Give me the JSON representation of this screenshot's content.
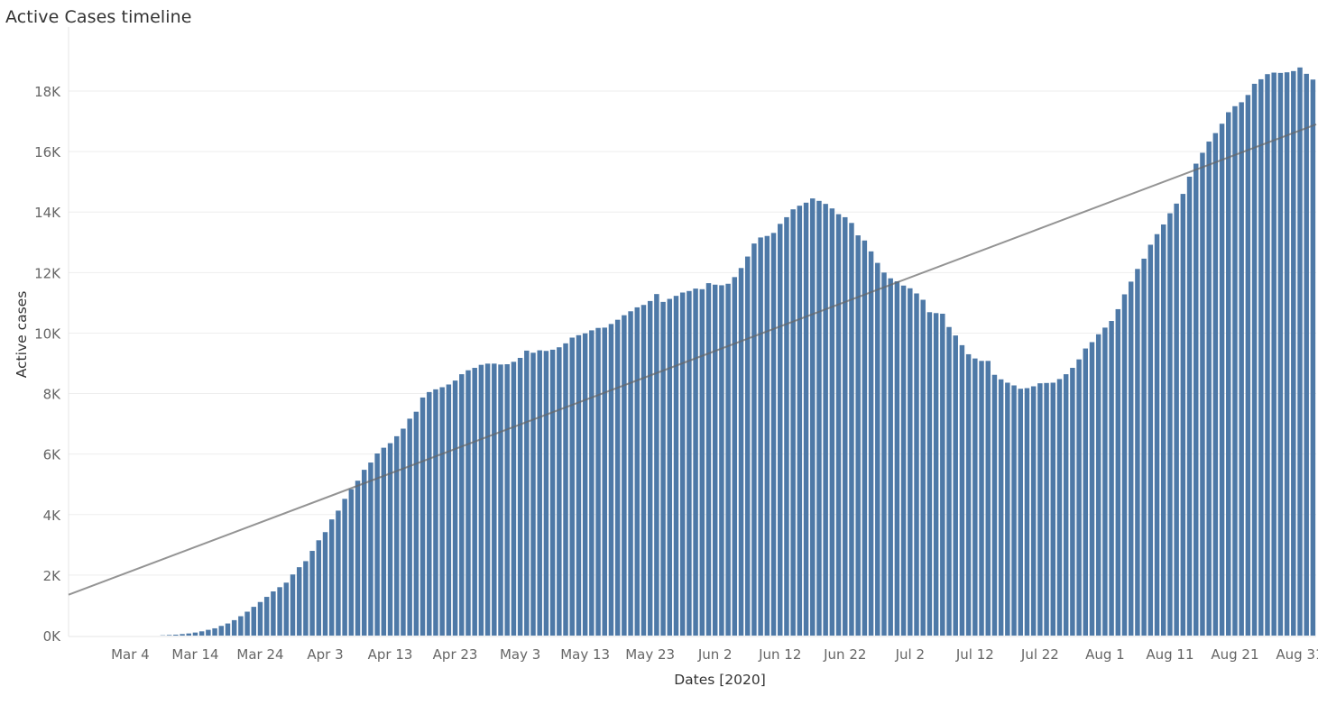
{
  "chart_data": {
    "type": "bar",
    "title": "Active Cases timeline",
    "xlabel": "Dates [2020]",
    "ylabel": "Active cases",
    "start_date": "2020-02-24",
    "ylim": [
      0,
      19300
    ],
    "yticks": [
      {
        "value": 0,
        "label": "0K"
      },
      {
        "value": 2000,
        "label": "2K"
      },
      {
        "value": 4000,
        "label": "4K"
      },
      {
        "value": 6000,
        "label": "6K"
      },
      {
        "value": 8000,
        "label": "8K"
      },
      {
        "value": 10000,
        "label": "10K"
      },
      {
        "value": 12000,
        "label": "12K"
      },
      {
        "value": 14000,
        "label": "14K"
      },
      {
        "value": 16000,
        "label": "16K"
      },
      {
        "value": 18000,
        "label": "18K"
      }
    ],
    "xticks": [
      {
        "date": "2020-03-04",
        "label": "Mar 4"
      },
      {
        "date": "2020-03-14",
        "label": "Mar 14"
      },
      {
        "date": "2020-03-24",
        "label": "Mar 24"
      },
      {
        "date": "2020-04-03",
        "label": "Apr 3"
      },
      {
        "date": "2020-04-13",
        "label": "Apr 13"
      },
      {
        "date": "2020-04-23",
        "label": "Apr 23"
      },
      {
        "date": "2020-05-03",
        "label": "May 3"
      },
      {
        "date": "2020-05-13",
        "label": "May 13"
      },
      {
        "date": "2020-05-23",
        "label": "May 23"
      },
      {
        "date": "2020-06-02",
        "label": "Jun 2"
      },
      {
        "date": "2020-06-12",
        "label": "Jun 12"
      },
      {
        "date": "2020-06-22",
        "label": "Jun 22"
      },
      {
        "date": "2020-07-02",
        "label": "Jul 2"
      },
      {
        "date": "2020-07-12",
        "label": "Jul 12"
      },
      {
        "date": "2020-07-22",
        "label": "Jul 22"
      },
      {
        "date": "2020-08-01",
        "label": "Aug 1"
      },
      {
        "date": "2020-08-11",
        "label": "Aug 11"
      },
      {
        "date": "2020-08-21",
        "label": "Aug 21"
      },
      {
        "date": "2020-08-31",
        "label": "Aug 31"
      }
    ],
    "values": [
      0,
      0,
      0,
      0,
      0,
      0,
      0,
      0,
      0,
      0,
      0,
      0,
      0,
      0,
      10,
      20,
      30,
      50,
      70,
      100,
      140,
      190,
      240,
      320,
      400,
      510,
      640,
      790,
      950,
      1110,
      1280,
      1460,
      1600,
      1750,
      2020,
      2260,
      2460,
      2800,
      3150,
      3420,
      3840,
      4130,
      4520,
      4840,
      5120,
      5480,
      5720,
      6020,
      6210,
      6360,
      6590,
      6840,
      7170,
      7400,
      7870,
      8050,
      8140,
      8210,
      8300,
      8430,
      8640,
      8770,
      8850,
      8950,
      8990,
      8990,
      8960,
      8970,
      9050,
      9180,
      9420,
      9350,
      9430,
      9410,
      9450,
      9530,
      9660,
      9850,
      9930,
      9990,
      10090,
      10170,
      10180,
      10300,
      10440,
      10590,
      10720,
      10850,
      10930,
      11060,
      11290,
      11030,
      11130,
      11230,
      11340,
      11390,
      11470,
      11450,
      11650,
      11600,
      11580,
      11630,
      11850,
      12150,
      12530,
      12960,
      13160,
      13210,
      13310,
      13610,
      13830,
      14090,
      14210,
      14310,
      14450,
      14370,
      14270,
      14120,
      13930,
      13830,
      13640,
      13230,
      13060,
      12700,
      12320,
      12000,
      11810,
      11710,
      11570,
      11480,
      11310,
      11100,
      10690,
      10660,
      10640,
      10200,
      9920,
      9600,
      9300,
      9160,
      9080,
      9080,
      8620,
      8470,
      8360,
      8270,
      8160,
      8180,
      8240,
      8340,
      8350,
      8360,
      8480,
      8640,
      8850,
      9130,
      9490,
      9700,
      9960,
      10180,
      10400,
      10790,
      11280,
      11700,
      12120,
      12460,
      12920,
      13270,
      13590,
      13960,
      14280,
      14600,
      15170,
      15600,
      15960,
      16330,
      16610,
      16920,
      17300,
      17500,
      17630,
      17870,
      18240,
      18390,
      18560,
      18610,
      18600,
      18620,
      18660,
      18780,
      18570,
      18380
    ],
    "trend_line": {
      "start": 1350,
      "end": 16900
    }
  }
}
